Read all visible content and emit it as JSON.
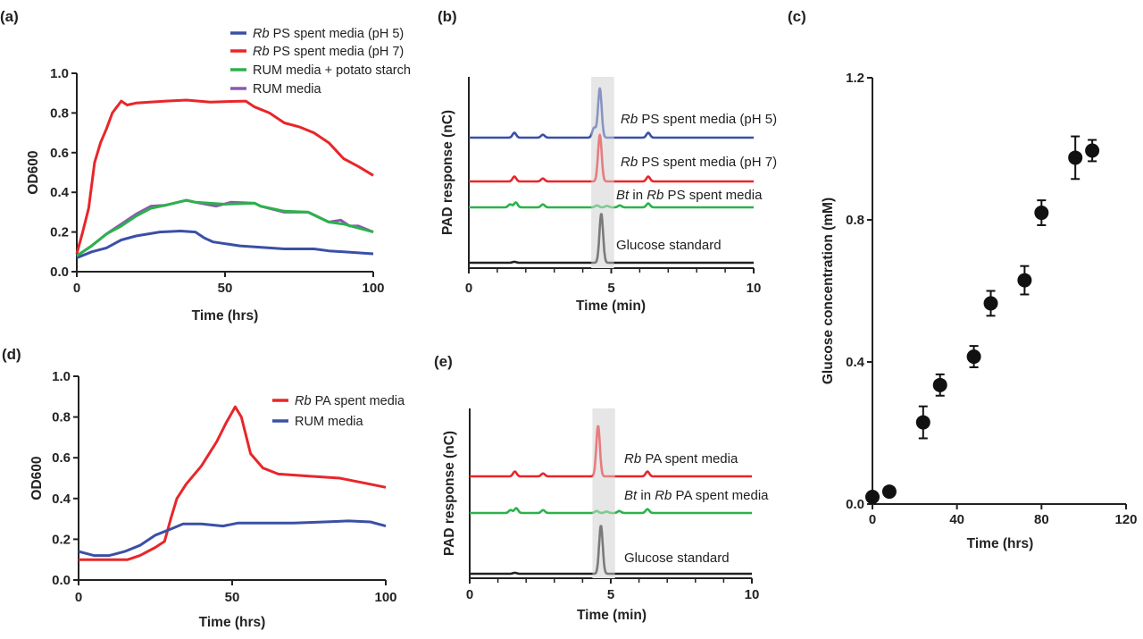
{
  "chart_data": [
    {
      "panel": "(a)",
      "type": "line",
      "xlabel": "Time (hrs)",
      "ylabel": "OD600",
      "xlim": [
        0,
        100
      ],
      "ylim": [
        0,
        1.0
      ],
      "xticks": [
        "0",
        "50",
        "100"
      ],
      "yticks": [
        "0.0",
        "0.2",
        "0.4",
        "0.6",
        "0.8",
        "1.0"
      ],
      "legend_position": "top-right",
      "series": [
        {
          "label": [
            {
              "t": "Rb",
              "i": true
            },
            {
              "t": " PS spent media (pH 5)"
            }
          ],
          "color": "#3a50a6",
          "x": [
            0,
            5,
            10,
            15,
            20,
            28,
            35,
            40,
            43,
            46,
            55,
            65,
            70,
            80,
            85,
            90,
            100
          ],
          "y": [
            0.07,
            0.1,
            0.12,
            0.16,
            0.18,
            0.2,
            0.205,
            0.2,
            0.17,
            0.15,
            0.13,
            0.12,
            0.115,
            0.115,
            0.105,
            0.1,
            0.09
          ]
        },
        {
          "label": [
            {
              "t": "Rb",
              "i": true
            },
            {
              "t": " PS spent media (pH 7)"
            }
          ],
          "color": "#e8262a",
          "x": [
            0,
            2,
            4,
            6,
            8,
            10,
            12,
            15,
            17,
            20,
            30,
            37,
            45,
            57,
            60,
            65,
            70,
            75,
            80,
            85,
            90,
            95,
            100
          ],
          "y": [
            0.09,
            0.2,
            0.32,
            0.55,
            0.65,
            0.72,
            0.8,
            0.86,
            0.84,
            0.85,
            0.86,
            0.865,
            0.855,
            0.86,
            0.83,
            0.8,
            0.75,
            0.73,
            0.7,
            0.65,
            0.57,
            0.53,
            0.485
          ]
        },
        {
          "label": [
            {
              "t": "RUM media + potato starch"
            }
          ],
          "color": "#2bb24c",
          "x": [
            0,
            5,
            10,
            15,
            20,
            25,
            30,
            37,
            40,
            50,
            60,
            62,
            70,
            78,
            85,
            90,
            95,
            100
          ],
          "y": [
            0.08,
            0.13,
            0.19,
            0.23,
            0.28,
            0.32,
            0.335,
            0.36,
            0.35,
            0.34,
            0.345,
            0.33,
            0.305,
            0.3,
            0.25,
            0.24,
            0.22,
            0.2
          ]
        },
        {
          "label": [
            {
              "t": "RUM media"
            }
          ],
          "color": "#8e56b0",
          "x": [
            0,
            5,
            10,
            15,
            20,
            25,
            30,
            37,
            40,
            47,
            52,
            60,
            62,
            70,
            78,
            85,
            89,
            92,
            95,
            100
          ],
          "y": [
            0.08,
            0.13,
            0.19,
            0.24,
            0.29,
            0.33,
            0.335,
            0.36,
            0.35,
            0.33,
            0.35,
            0.345,
            0.33,
            0.3,
            0.3,
            0.25,
            0.26,
            0.23,
            0.23,
            0.2
          ]
        }
      ]
    },
    {
      "panel": "(b)",
      "type": "line",
      "xlabel": "Time (min)",
      "ylabel": "PAD response (nC)",
      "xlim": [
        0,
        10
      ],
      "xticks": [
        "0",
        "5",
        "10"
      ],
      "highlight_range": [
        4.3,
        5.1
      ],
      "series": [
        {
          "label": [
            {
              "t": "Rb",
              "i": true
            },
            {
              "t": " PS spent media (pH 5)"
            }
          ],
          "color": "#3a50a6",
          "peaks": [
            {
              "t": 1.6,
              "h": 0.1
            },
            {
              "t": 2.6,
              "h": 0.06
            },
            {
              "t": 4.4,
              "h": 0.2
            },
            {
              "t": 4.6,
              "h": 1.0
            },
            {
              "t": 6.3,
              "h": 0.1
            }
          ]
        },
        {
          "label": [
            {
              "t": "Rb",
              "i": true
            },
            {
              "t": " PS spent media (pH 7)"
            }
          ],
          "color": "#e8262a",
          "peaks": [
            {
              "t": 1.6,
              "h": 0.1
            },
            {
              "t": 2.6,
              "h": 0.06
            },
            {
              "t": 4.6,
              "h": 0.95
            },
            {
              "t": 6.3,
              "h": 0.1
            }
          ]
        },
        {
          "label": [
            {
              "t": "Bt",
              "i": true
            },
            {
              "t": " in "
            },
            {
              "t": "Rb",
              "i": true
            },
            {
              "t": " PS spent media"
            }
          ],
          "color": "#2bb24c",
          "peaks": [
            {
              "t": 1.45,
              "h": 0.06
            },
            {
              "t": 1.65,
              "h": 0.1
            },
            {
              "t": 2.6,
              "h": 0.06
            },
            {
              "t": 4.5,
              "h": 0.04
            },
            {
              "t": 4.85,
              "h": 0.03
            },
            {
              "t": 5.3,
              "h": 0.04
            },
            {
              "t": 6.3,
              "h": 0.08
            }
          ]
        },
        {
          "label": [
            {
              "t": "Glucose standard"
            }
          ],
          "color": "#222222",
          "peaks": [
            {
              "t": 1.6,
              "h": 0.02
            },
            {
              "t": 4.65,
              "h": 1.0
            }
          ]
        }
      ]
    },
    {
      "panel": "(c)",
      "type": "scatter",
      "xlabel": "Time (hrs)",
      "ylabel": "Glucose concentration (mM)",
      "xlim": [
        0,
        120
      ],
      "ylim": [
        0,
        1.2
      ],
      "xticks": [
        "0",
        "40",
        "80",
        "120"
      ],
      "yticks": [
        "0.0",
        "0.4",
        "0.8",
        "1.2"
      ],
      "color": "#111111",
      "points": [
        {
          "x": 0,
          "y": 0.02,
          "err": 0
        },
        {
          "x": 8,
          "y": 0.035,
          "err": 0
        },
        {
          "x": 24,
          "y": 0.23,
          "err": 0.045
        },
        {
          "x": 32,
          "y": 0.335,
          "err": 0.03
        },
        {
          "x": 48,
          "y": 0.415,
          "err": 0.03
        },
        {
          "x": 56,
          "y": 0.565,
          "err": 0.035
        },
        {
          "x": 72,
          "y": 0.63,
          "err": 0.04
        },
        {
          "x": 80,
          "y": 0.82,
          "err": 0.035
        },
        {
          "x": 96,
          "y": 0.975,
          "err": 0.06
        },
        {
          "x": 104,
          "y": 0.995,
          "err": 0.03
        }
      ]
    },
    {
      "panel": "(d)",
      "type": "line",
      "xlabel": "Time (hrs)",
      "ylabel": "OD600",
      "xlim": [
        0,
        100
      ],
      "ylim": [
        0,
        1.0
      ],
      "xticks": [
        "0",
        "50",
        "100"
      ],
      "yticks": [
        "0.0",
        "0.2",
        "0.4",
        "0.6",
        "0.8",
        "1.0"
      ],
      "legend_position": "top-right",
      "series": [
        {
          "label": [
            {
              "t": "Rb",
              "i": true
            },
            {
              "t": " PA spent media"
            }
          ],
          "color": "#e8262a",
          "x": [
            0,
            10,
            16,
            20,
            25,
            28,
            30,
            32,
            35,
            40,
            45,
            48,
            51,
            53,
            56,
            60,
            65,
            75,
            85,
            95,
            100
          ],
          "y": [
            0.1,
            0.1,
            0.1,
            0.12,
            0.16,
            0.19,
            0.3,
            0.4,
            0.47,
            0.56,
            0.68,
            0.77,
            0.85,
            0.8,
            0.62,
            0.55,
            0.52,
            0.51,
            0.5,
            0.47,
            0.455
          ]
        },
        {
          "label": [
            {
              "t": "RUM media"
            }
          ],
          "color": "#3a50a6",
          "x": [
            0,
            5,
            10,
            15,
            20,
            25,
            30,
            34,
            40,
            47,
            52,
            60,
            70,
            80,
            88,
            95,
            100
          ],
          "y": [
            0.14,
            0.12,
            0.12,
            0.14,
            0.17,
            0.22,
            0.25,
            0.275,
            0.275,
            0.265,
            0.28,
            0.28,
            0.28,
            0.285,
            0.29,
            0.285,
            0.265
          ]
        }
      ]
    },
    {
      "panel": "(e)",
      "type": "line",
      "xlabel": "Time (min)",
      "ylabel": "PAD response (nC)",
      "xlim": [
        0,
        10
      ],
      "xticks": [
        "0",
        "5",
        "10"
      ],
      "highlight_range": [
        4.35,
        5.15
      ],
      "series": [
        {
          "label": [
            {
              "t": "Rb",
              "i": true
            },
            {
              "t": " PA spent media"
            }
          ],
          "color": "#e8262a",
          "peaks": [
            {
              "t": 1.6,
              "h": 0.1
            },
            {
              "t": 2.6,
              "h": 0.06
            },
            {
              "t": 4.55,
              "h": 1.05
            },
            {
              "t": 6.3,
              "h": 0.1
            }
          ]
        },
        {
          "label": [
            {
              "t": "Bt",
              "i": true
            },
            {
              "t": " in "
            },
            {
              "t": "Rb",
              "i": true
            },
            {
              "t": " PA spent media"
            }
          ],
          "color": "#2bb24c",
          "peaks": [
            {
              "t": 1.45,
              "h": 0.06
            },
            {
              "t": 1.65,
              "h": 0.1
            },
            {
              "t": 2.6,
              "h": 0.06
            },
            {
              "t": 4.5,
              "h": 0.04
            },
            {
              "t": 4.85,
              "h": 0.03
            },
            {
              "t": 5.3,
              "h": 0.04
            },
            {
              "t": 6.3,
              "h": 0.08
            }
          ]
        },
        {
          "label": [
            {
              "t": "Glucose standard"
            }
          ],
          "color": "#222222",
          "peaks": [
            {
              "t": 1.6,
              "h": 0.02
            },
            {
              "t": 4.65,
              "h": 1.0
            }
          ]
        }
      ]
    }
  ]
}
